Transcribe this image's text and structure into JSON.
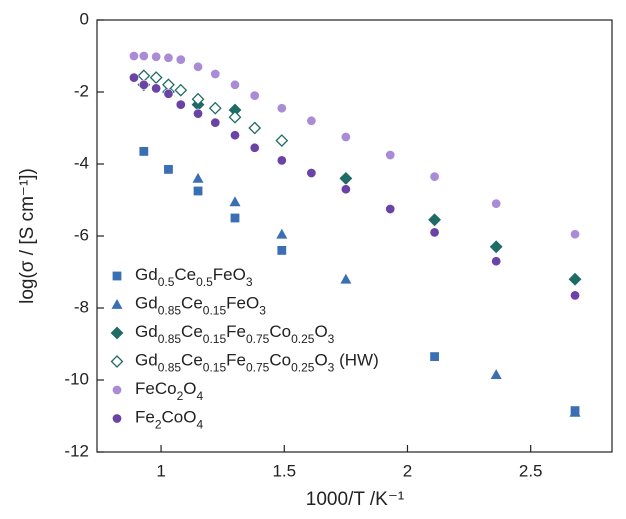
{
  "chart_data": {
    "type": "scatter",
    "x_label": "1000/T /K⁻¹",
    "y_label": "log(σ / [S cm⁻¹])",
    "xlim": [
      0.74,
      2.83
    ],
    "ylim": [
      -12,
      0
    ],
    "xticks": [
      1,
      1.5,
      2,
      2.5
    ],
    "yticks": [
      0,
      -2,
      -4,
      -6,
      -8,
      -10,
      -12
    ],
    "legend": "lower left",
    "series": [
      {
        "name": "Gd0.5Ce0.5FeO3",
        "color": "#3b6fb3",
        "marker": "square",
        "x": [
          0.93,
          1.03,
          1.15,
          1.3,
          1.49,
          2.11,
          2.68
        ],
        "values": [
          -3.65,
          -4.15,
          -4.75,
          -5.5,
          -6.4,
          -9.35,
          -10.85
        ]
      },
      {
        "name": "Gd0.85Ce0.15FeO3",
        "color": "#3b6fb3",
        "marker": "triangle",
        "x": [
          1.15,
          1.3,
          1.49,
          1.75,
          2.36,
          2.68
        ],
        "values": [
          -4.4,
          -5.05,
          -5.95,
          -7.2,
          -9.85,
          -10.9
        ]
      },
      {
        "name": "Gd0.85Ce0.15Fe0.75Co0.25O3",
        "color": "#1f6b66",
        "marker": "diamond",
        "x": [
          0.93,
          1.03,
          1.15,
          1.3,
          1.75,
          2.11,
          2.36,
          2.68
        ],
        "values": [
          -1.8,
          -2.0,
          -2.35,
          -2.5,
          -4.4,
          -5.55,
          -6.3,
          -7.2
        ]
      },
      {
        "name": "Gd0.85Ce0.15Fe0.75Co0.25O3 (HW)",
        "color": "#1f6b66",
        "marker": "diamond-open",
        "x": [
          0.93,
          0.98,
          1.03,
          1.08,
          1.15,
          1.22,
          1.3,
          1.38,
          1.49
        ],
        "values": [
          -1.55,
          -1.6,
          -1.8,
          -1.95,
          -2.2,
          -2.45,
          -2.7,
          -3.0,
          -3.35
        ]
      },
      {
        "name": "FeCo2O4",
        "color": "#a98bd6",
        "marker": "circle",
        "x": [
          0.89,
          0.93,
          0.98,
          1.03,
          1.08,
          1.15,
          1.22,
          1.3,
          1.38,
          1.49,
          1.61,
          1.75,
          1.93,
          2.11,
          2.36,
          2.68
        ],
        "values": [
          -1.0,
          -1.0,
          -1.02,
          -1.05,
          -1.1,
          -1.3,
          -1.5,
          -1.8,
          -2.1,
          -2.45,
          -2.8,
          -3.25,
          -3.75,
          -4.35,
          -5.1,
          -5.95
        ]
      },
      {
        "name": "Fe2CoO4",
        "color": "#6b42a6",
        "marker": "circle",
        "x": [
          0.89,
          0.93,
          0.98,
          1.03,
          1.08,
          1.15,
          1.22,
          1.3,
          1.38,
          1.49,
          1.61,
          1.75,
          1.93,
          2.11,
          2.36,
          2.68
        ],
        "values": [
          -1.6,
          -1.8,
          -1.9,
          -2.05,
          -2.35,
          -2.6,
          -2.85,
          -3.2,
          -3.55,
          -3.9,
          -4.25,
          -4.7,
          -5.25,
          -5.9,
          -6.7,
          -7.65
        ]
      }
    ]
  }
}
